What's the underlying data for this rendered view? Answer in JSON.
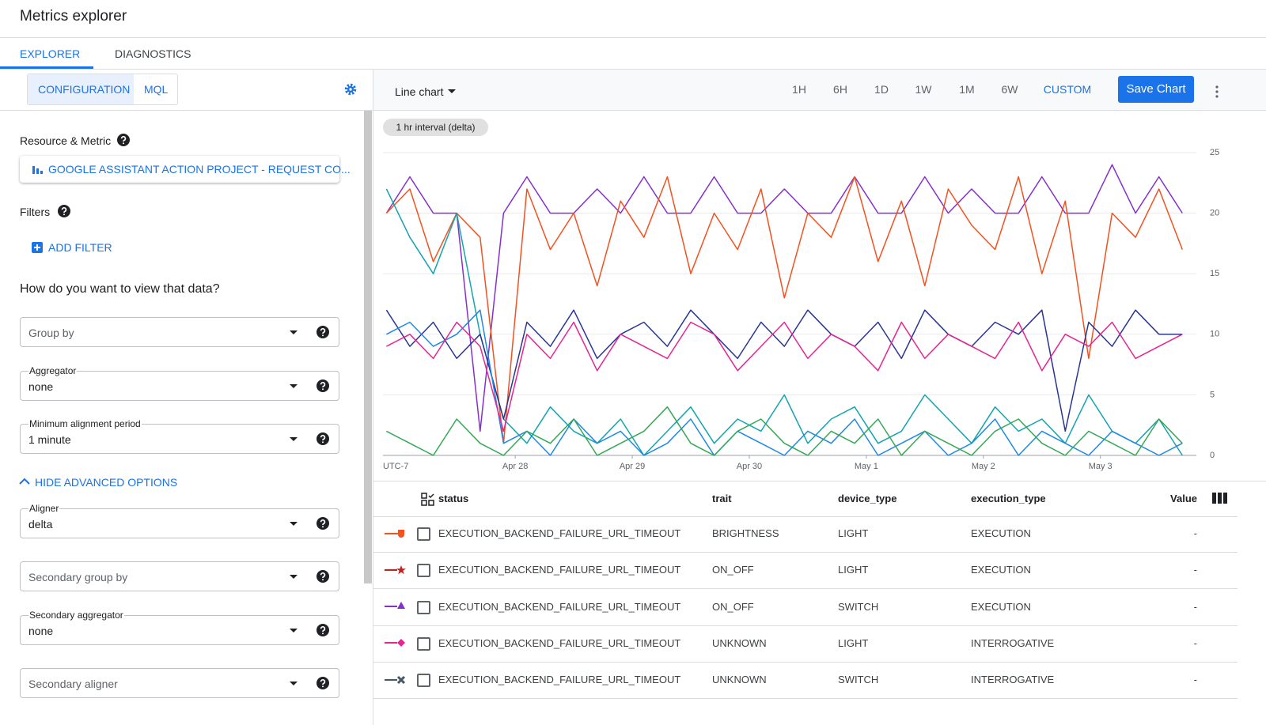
{
  "header": {
    "title": "Metrics explorer"
  },
  "tabs": [
    "EXPLORER",
    "DIAGNOSTICS"
  ],
  "config_tabs": [
    "CONFIGURATION",
    "MQL"
  ],
  "left_panel": {
    "resource_heading": "Resource & Metric",
    "metric": "GOOGLE ASSISTANT ACTION PROJECT - REQUEST CO...",
    "filters_heading": "Filters",
    "add_filter": "ADD FILTER",
    "view_heading": "How do you want to view that data?",
    "advanced_toggle": "HIDE ADVANCED OPTIONS",
    "fields": [
      {
        "label": "Group by"
      },
      {
        "label": "Aggregator",
        "value": "none"
      },
      {
        "label": "Minimum alignment period",
        "value": "1 minute"
      },
      {
        "label": "Aligner",
        "value": "delta"
      },
      {
        "label": "Secondary group by"
      },
      {
        "label": "Secondary aggregator",
        "value": "none"
      },
      {
        "label": "Secondary aligner"
      }
    ]
  },
  "toolbar": {
    "chart_type": "Line chart",
    "ranges": [
      "1H",
      "6H",
      "1D",
      "1W",
      "1M",
      "6W",
      "CUSTOM"
    ],
    "save": "Save Chart"
  },
  "chart_data": {
    "type": "line",
    "annotation": "1 hr interval (delta)",
    "x_axis_label": "UTC-7",
    "x": [
      -0.1,
      0.1,
      0.3,
      0.5,
      0.7,
      0.9,
      1.1,
      1.3,
      1.5,
      1.7,
      1.9,
      2.1,
      2.3,
      2.5,
      2.7,
      2.9,
      3.1,
      3.3,
      3.5,
      3.7,
      3.9,
      4.1,
      4.3,
      4.5,
      4.7,
      4.9,
      5.1,
      5.3,
      5.5,
      5.7,
      5.9,
      6.1,
      6.3,
      6.5,
      6.7
    ],
    "xlim": [
      -0.13,
      6.82
    ],
    "xticks": [
      {
        "value": 1,
        "label": "Apr 28"
      },
      {
        "value": 2,
        "label": "Apr 29"
      },
      {
        "value": 3,
        "label": "Apr 30"
      },
      {
        "value": 4,
        "label": "May 1"
      },
      {
        "value": 5,
        "label": "May 2"
      },
      {
        "value": 6,
        "label": "May 3"
      }
    ],
    "ylim": [
      0,
      25
    ],
    "yticks": [
      0,
      5,
      10,
      15,
      20,
      25
    ],
    "grid": true,
    "series": [
      {
        "color": "#8430ce",
        "values": [
          20,
          23,
          20,
          20,
          2,
          20,
          23,
          20,
          20,
          22,
          20,
          23,
          20,
          20,
          23,
          20,
          20,
          22,
          20,
          20,
          23,
          20,
          20,
          23,
          20,
          22,
          20,
          20,
          23,
          20,
          20,
          24,
          20,
          23,
          20
        ]
      },
      {
        "color": "#f4511e",
        "values": [
          20,
          22,
          16,
          20,
          18,
          1,
          22,
          17,
          20,
          14,
          21,
          18,
          23,
          15,
          20,
          17,
          22,
          13,
          20,
          18,
          23,
          16,
          21,
          14,
          22,
          19,
          17,
          23,
          15,
          21,
          8,
          20,
          18,
          22,
          17
        ]
      },
      {
        "color": "#12a4af",
        "values": [
          22,
          18,
          15,
          20,
          10,
          3,
          1,
          4,
          2,
          1,
          3,
          0,
          2,
          4,
          1,
          3,
          2,
          5,
          1,
          3,
          4,
          1,
          2,
          5,
          3,
          1,
          4,
          2,
          3,
          1,
          5,
          2,
          1,
          3,
          0
        ]
      },
      {
        "color": "#283593",
        "values": [
          12,
          9,
          11,
          8,
          10,
          3,
          11,
          9,
          12,
          8,
          10,
          11,
          9,
          12,
          10,
          8,
          11,
          9,
          12,
          10,
          9,
          11,
          8,
          12,
          10,
          9,
          11,
          10,
          12,
          2,
          11,
          9,
          12,
          10,
          10
        ]
      },
      {
        "color": "#1e88e5",
        "values": [
          10,
          11,
          9,
          10,
          12,
          1,
          2,
          0,
          3,
          1,
          2,
          0,
          1,
          3,
          0,
          2,
          1,
          0,
          2,
          1,
          3,
          0,
          1,
          2,
          0,
          1,
          3,
          0,
          2,
          1,
          0,
          2,
          1,
          0,
          1
        ]
      },
      {
        "color": "#e52592",
        "values": [
          9,
          10,
          8,
          11,
          9,
          2,
          10,
          8,
          11,
          7,
          10,
          9,
          8,
          11,
          10,
          7,
          9,
          11,
          8,
          10,
          9,
          7,
          11,
          8,
          10,
          9,
          8,
          11,
          7,
          10,
          9,
          11,
          8,
          9,
          10
        ]
      },
      {
        "color": "#34a853",
        "values": [
          2,
          1,
          0,
          3,
          1,
          0,
          2,
          1,
          3,
          0,
          1,
          2,
          4,
          1,
          0,
          2,
          3,
          1,
          0,
          2,
          1,
          3,
          0,
          2,
          1,
          0,
          2,
          3,
          1,
          0,
          2,
          1,
          0,
          3,
          1
        ]
      }
    ]
  },
  "table": {
    "columns": [
      "status",
      "trait",
      "device_type",
      "execution_type",
      "Value"
    ],
    "rows": [
      [
        "EXECUTION_BACKEND_FAILURE_URL_TIMEOUT",
        "BRIGHTNESS",
        "LIGHT",
        "EXECUTION",
        "-"
      ],
      [
        "EXECUTION_BACKEND_FAILURE_URL_TIMEOUT",
        "ON_OFF",
        "LIGHT",
        "EXECUTION",
        "-"
      ],
      [
        "EXECUTION_BACKEND_FAILURE_URL_TIMEOUT",
        "ON_OFF",
        "SWITCH",
        "EXECUTION",
        "-"
      ],
      [
        "EXECUTION_BACKEND_FAILURE_URL_TIMEOUT",
        "UNKNOWN",
        "LIGHT",
        "INTERROGATIVE",
        "-"
      ],
      [
        "EXECUTION_BACKEND_FAILURE_URL_TIMEOUT",
        "UNKNOWN",
        "SWITCH",
        "INTERROGATIVE",
        "-"
      ]
    ]
  }
}
